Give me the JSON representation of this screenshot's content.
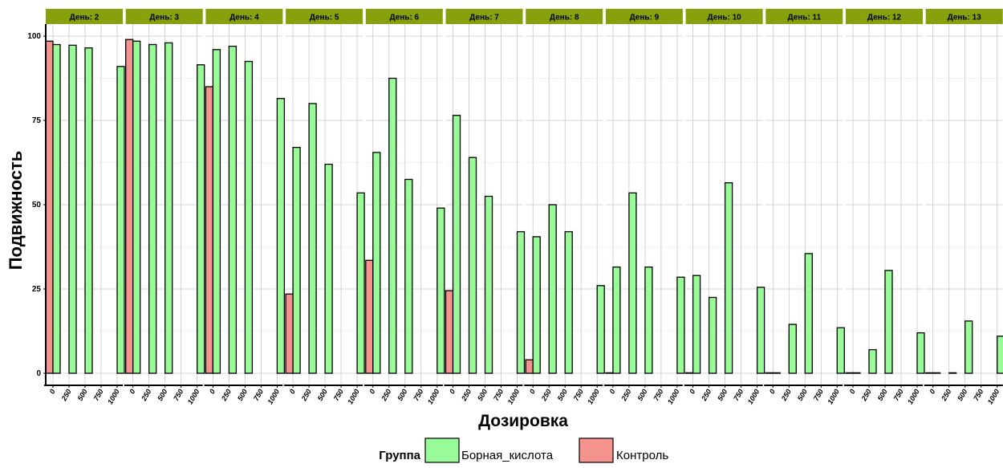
{
  "chart_data": {
    "type": "bar",
    "facet_labels": [
      "День: 2",
      "День: 3",
      "День: 4",
      "День: 5",
      "День: 6",
      "День: 7",
      "День: 8",
      "День: 9",
      "День: 10",
      "День: 11",
      "День: 12",
      "День: 13"
    ],
    "x_ticks": [
      "0",
      "250",
      "500",
      "750",
      "1000"
    ],
    "y_ticks": [
      0,
      25,
      50,
      75,
      100
    ],
    "ylim": [
      0,
      100
    ],
    "xlabel": "Дозировка",
    "ylabel": "Подвижность",
    "grid": true,
    "legend": {
      "position": "bottom",
      "title": "Группа",
      "entries": [
        {
          "key": "boric",
          "label": "Борная_кислота",
          "color": "#98FB98"
        },
        {
          "key": "control",
          "label": "Контроль",
          "color": "#F4928E"
        }
      ]
    },
    "panels": [
      {
        "day": "2",
        "bars": [
          {
            "x": 0,
            "group": "control",
            "value": 98.5
          },
          {
            "x": 0,
            "group": "boric",
            "value": 97.5
          },
          {
            "x": 250,
            "group": "boric",
            "value": 97.3
          },
          {
            "x": 500,
            "group": "boric",
            "value": 96.5
          },
          {
            "x": 1000,
            "group": "boric",
            "value": 91
          }
        ]
      },
      {
        "day": "3",
        "bars": [
          {
            "x": 0,
            "group": "control",
            "value": 99
          },
          {
            "x": 0,
            "group": "boric",
            "value": 98.5
          },
          {
            "x": 250,
            "group": "boric",
            "value": 97.5
          },
          {
            "x": 500,
            "group": "boric",
            "value": 98
          },
          {
            "x": 1000,
            "group": "boric",
            "value": 91.5
          }
        ]
      },
      {
        "day": "4",
        "bars": [
          {
            "x": 0,
            "group": "control",
            "value": 85
          },
          {
            "x": 0,
            "group": "boric",
            "value": 96
          },
          {
            "x": 250,
            "group": "boric",
            "value": 97
          },
          {
            "x": 500,
            "group": "boric",
            "value": 92.5
          },
          {
            "x": 1000,
            "group": "boric",
            "value": 81.5
          }
        ]
      },
      {
        "day": "5",
        "bars": [
          {
            "x": 0,
            "group": "control",
            "value": 23.5
          },
          {
            "x": 0,
            "group": "boric",
            "value": 67
          },
          {
            "x": 250,
            "group": "boric",
            "value": 80
          },
          {
            "x": 500,
            "group": "boric",
            "value": 62
          },
          {
            "x": 1000,
            "group": "boric",
            "value": 53.5
          }
        ]
      },
      {
        "day": "6",
        "bars": [
          {
            "x": 0,
            "group": "control",
            "value": 33.5
          },
          {
            "x": 0,
            "group": "boric",
            "value": 65.5
          },
          {
            "x": 250,
            "group": "boric",
            "value": 87.5
          },
          {
            "x": 500,
            "group": "boric",
            "value": 57.5
          },
          {
            "x": 1000,
            "group": "boric",
            "value": 49
          }
        ]
      },
      {
        "day": "7",
        "bars": [
          {
            "x": 0,
            "group": "control",
            "value": 24.5
          },
          {
            "x": 0,
            "group": "boric",
            "value": 76.5
          },
          {
            "x": 250,
            "group": "boric",
            "value": 64
          },
          {
            "x": 500,
            "group": "boric",
            "value": 52.5
          },
          {
            "x": 1000,
            "group": "boric",
            "value": 42
          }
        ]
      },
      {
        "day": "8",
        "bars": [
          {
            "x": 0,
            "group": "control",
            "value": 4
          },
          {
            "x": 0,
            "group": "boric",
            "value": 40.5
          },
          {
            "x": 250,
            "group": "boric",
            "value": 50
          },
          {
            "x": 500,
            "group": "boric",
            "value": 42
          },
          {
            "x": 1000,
            "group": "boric",
            "value": 26
          }
        ]
      },
      {
        "day": "9",
        "bars": [
          {
            "x": 0,
            "group": "control",
            "value": 0
          },
          {
            "x": 0,
            "group": "boric",
            "value": 31.5
          },
          {
            "x": 250,
            "group": "boric",
            "value": 53.5
          },
          {
            "x": 500,
            "group": "boric",
            "value": 31.5
          },
          {
            "x": 1000,
            "group": "boric",
            "value": 28.5
          }
        ]
      },
      {
        "day": "10",
        "bars": [
          {
            "x": 0,
            "group": "control",
            "value": 0
          },
          {
            "x": 0,
            "group": "boric",
            "value": 29
          },
          {
            "x": 250,
            "group": "boric",
            "value": 22.5
          },
          {
            "x": 500,
            "group": "boric",
            "value": 56.5
          },
          {
            "x": 1000,
            "group": "boric",
            "value": 25.5
          }
        ]
      },
      {
        "day": "11",
        "bars": [
          {
            "x": 0,
            "group": "control",
            "value": 0
          },
          {
            "x": 0,
            "group": "boric",
            "value": 0
          },
          {
            "x": 250,
            "group": "boric",
            "value": 14.5
          },
          {
            "x": 500,
            "group": "boric",
            "value": 35.5
          },
          {
            "x": 1000,
            "group": "boric",
            "value": 13.5
          }
        ]
      },
      {
        "day": "12",
        "bars": [
          {
            "x": 0,
            "group": "control",
            "value": 0
          },
          {
            "x": 0,
            "group": "boric",
            "value": 0
          },
          {
            "x": 250,
            "group": "boric",
            "value": 7
          },
          {
            "x": 500,
            "group": "boric",
            "value": 30.5
          },
          {
            "x": 1000,
            "group": "boric",
            "value": 12
          }
        ]
      },
      {
        "day": "13",
        "bars": [
          {
            "x": 0,
            "group": "control",
            "value": 0
          },
          {
            "x": 0,
            "group": "boric",
            "value": 0
          },
          {
            "x": 250,
            "group": "boric",
            "value": 0
          },
          {
            "x": 500,
            "group": "boric",
            "value": 15.5
          },
          {
            "x": 1000,
            "group": "boric",
            "value": 11
          }
        ]
      }
    ]
  }
}
